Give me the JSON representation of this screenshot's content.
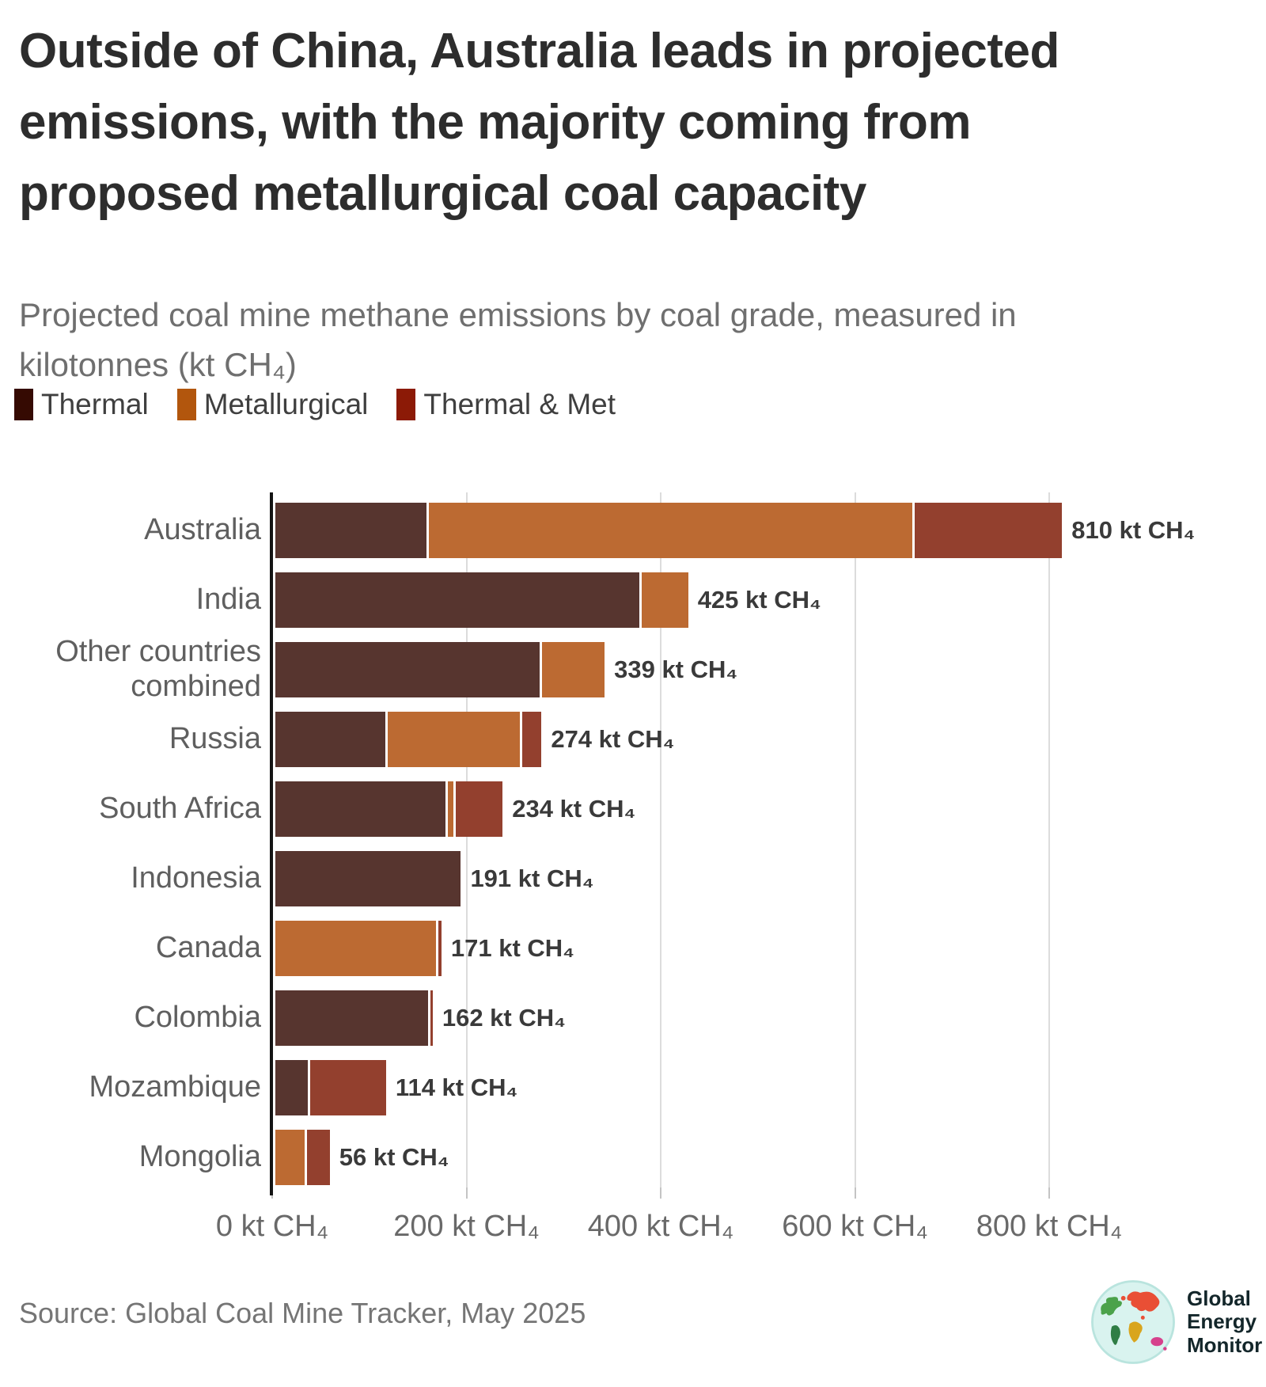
{
  "title": "Outside of China, Australia leads in projected emissions, with the majority coming from proposed metallurgical coal capacity",
  "subtitle": "Projected coal mine methane emissions by coal grade, measured in kilotonnes (kt CH₄)",
  "legend": [
    {
      "label": "Thermal",
      "color": "#350a02"
    },
    {
      "label": "Metallurgical",
      "color": "#b2560d"
    },
    {
      "label": "Thermal & Met",
      "color": "#8c1a06"
    }
  ],
  "chart_data": {
    "type": "bar",
    "orientation": "horizontal",
    "stacked": true,
    "grid": true,
    "legend_position": "top",
    "title": "Outside of China, Australia leads in projected emissions, with the majority coming from proposed metallurgical coal capacity",
    "subtitle": "Projected coal mine methane emissions by coal grade, measured in kilotonnes (kt CH₄)",
    "unit": "kt CH₄",
    "xlabel": "",
    "ylabel": "",
    "xlim": [
      0,
      860
    ],
    "categories": [
      "Australia",
      "India",
      "Other countries combined",
      "Russia",
      "South Africa",
      "Indonesia",
      "Canada",
      "Colombia",
      "Mozambique",
      "Mongolia"
    ],
    "series": [
      {
        "name": "Thermal",
        "color": "#57352f",
        "values": [
          156,
          375,
          272,
          113,
          175,
          191,
          0,
          157,
          33,
          0
        ]
      },
      {
        "name": "Metallurgical",
        "color": "#bc6a32",
        "values": [
          500,
          50,
          67,
          139,
          8,
          0,
          165,
          0,
          0,
          30
        ]
      },
      {
        "name": "Thermal & Met",
        "color": "#93402e",
        "values": [
          154,
          0,
          0,
          22,
          51,
          0,
          6,
          5,
          81,
          26
        ]
      }
    ],
    "totals": [
      810,
      425,
      339,
      274,
      234,
      191,
      171,
      162,
      114,
      56
    ],
    "value_labels": [
      "810 kt CH₄",
      "425 kt CH₄",
      "339 kt CH₄",
      "274 kt CH₄",
      "234 kt CH₄",
      "191 kt CH₄",
      "171 kt CH₄",
      "162 kt CH₄",
      "114 kt CH₄",
      "56 kt CH₄"
    ],
    "x_ticks": [
      {
        "value": 0,
        "label": "0 kt CH₄"
      },
      {
        "value": 200,
        "label": "200 kt CH₄"
      },
      {
        "value": 400,
        "label": "400 kt CH₄"
      },
      {
        "value": 600,
        "label": "600 kt CH₄"
      },
      {
        "value": 800,
        "label": "800 kt CH₄"
      }
    ]
  },
  "source": "Source: Global Coal Mine Tracker, May 2025",
  "logo": {
    "lines": [
      "Global",
      "Energy",
      "Monitor"
    ]
  }
}
